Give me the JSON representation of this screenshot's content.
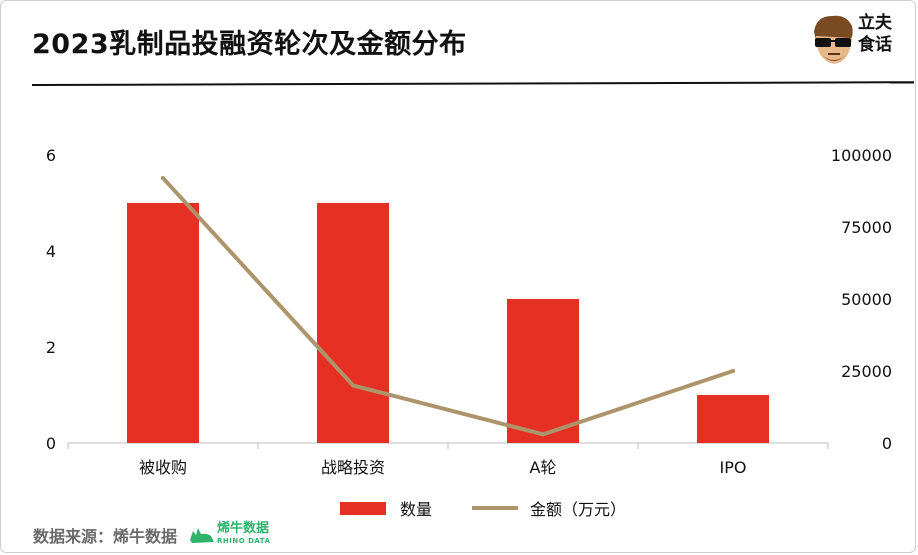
{
  "header": {
    "title": "2023乳制品投融资轮次及金额分布",
    "brand": "立夫食话"
  },
  "source": {
    "label": "数据来源：烯牛数据",
    "logo_cn": "烯牛数据",
    "logo_en": "RHINO DATA"
  },
  "colors": {
    "bar": "#e63024",
    "line": "#ad946b",
    "logo_green": "#2fb46e"
  },
  "chart_data": {
    "type": "bar",
    "categories": [
      "被收购",
      "战略投资",
      "A轮",
      "IPO"
    ],
    "series": [
      {
        "name": "数量",
        "type": "bar",
        "axis": "left",
        "values": [
          5,
          5,
          3,
          1
        ]
      },
      {
        "name": "金额（万元）",
        "type": "line",
        "axis": "right",
        "values": [
          92000,
          20000,
          3000,
          25000
        ]
      }
    ],
    "y_left": {
      "ticks": [
        "0",
        "2",
        "4",
        "6"
      ],
      "range": [
        0,
        6
      ]
    },
    "y_right": {
      "ticks": [
        "0",
        "25000",
        "50000",
        "75000",
        "100000"
      ],
      "range": [
        0,
        100000
      ]
    },
    "grid": false,
    "legend_position": "bottom"
  }
}
